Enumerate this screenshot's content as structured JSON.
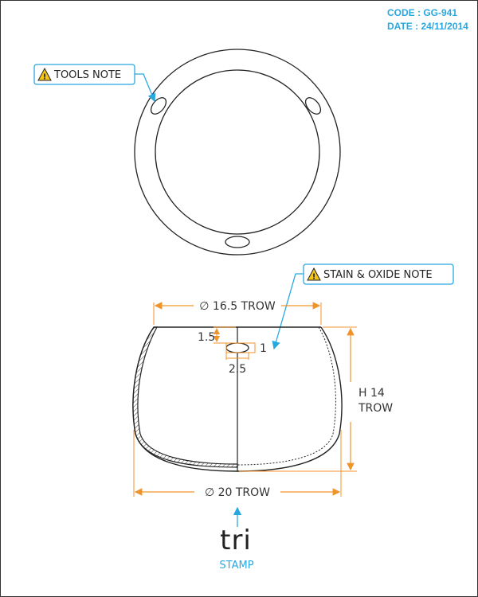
{
  "header": {
    "code": "CODE : GG-941",
    "date": "DATE : 24/11/2014"
  },
  "notes": {
    "tools": "TOOLS NOTE",
    "stain": "STAIN & OXIDE NOTE"
  },
  "dimensions": {
    "top_diameter": "∅ 16.5 TROW",
    "bottom_diameter": "∅ 20 TROW",
    "height_line1": "H 14",
    "height_line2": "TROW",
    "hole_offset": "1.5",
    "hole_height": "1",
    "hole_width": "2.5"
  },
  "stamp": {
    "mark": "tri",
    "label": "STAMP"
  },
  "colors": {
    "accent": "#29a8e0",
    "dimension": "#f0932b",
    "warning": "#f5c518",
    "line": "#222222"
  }
}
